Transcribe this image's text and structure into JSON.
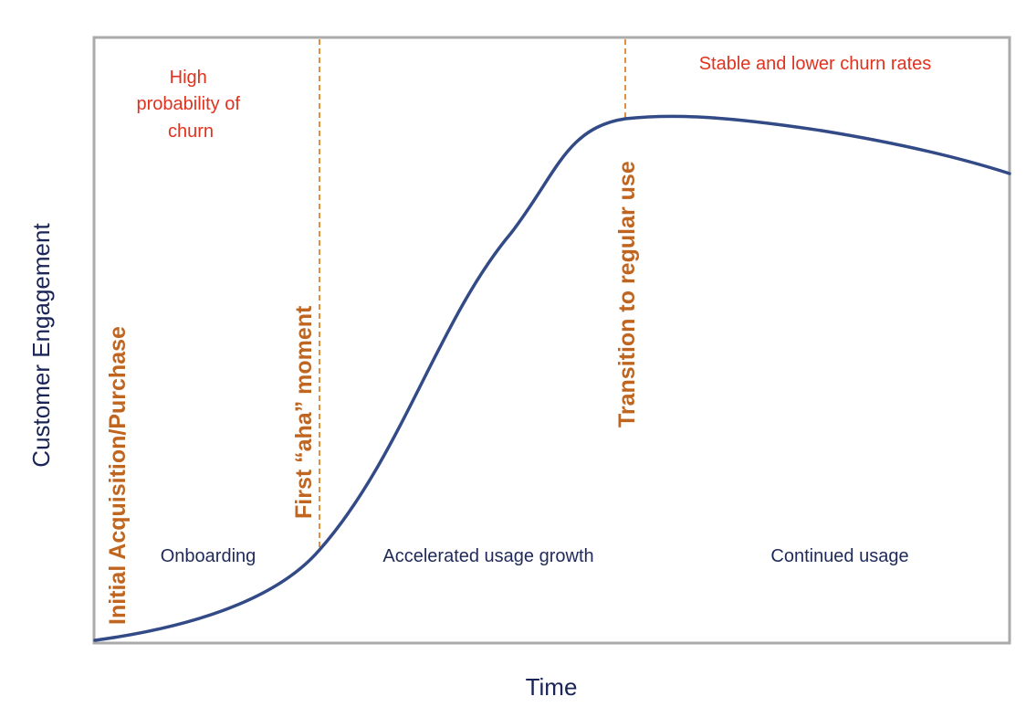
{
  "axes": {
    "x_label": "Time",
    "y_label": "Customer Engagement"
  },
  "milestones": [
    {
      "label": "Initial Acquisition/Purchase"
    },
    {
      "label": "First “aha” moment"
    },
    {
      "label": "Transition to regular use"
    }
  ],
  "phases": [
    {
      "label": "Onboarding"
    },
    {
      "label": "Accelerated usage growth"
    },
    {
      "label": "Continued usage"
    }
  ],
  "notes": {
    "high_churn": [
      "High",
      "probability of",
      "churn"
    ],
    "stable_churn": "Stable and lower churn rates"
  },
  "colors": {
    "curve": "#324a86",
    "milestone": "#c0651f",
    "dashed_line": "#e0903f",
    "note": "#e0321e",
    "phase_text": "#1f2a5a",
    "axis_text": "#1a2456",
    "frame": "#aaaaaa"
  }
}
